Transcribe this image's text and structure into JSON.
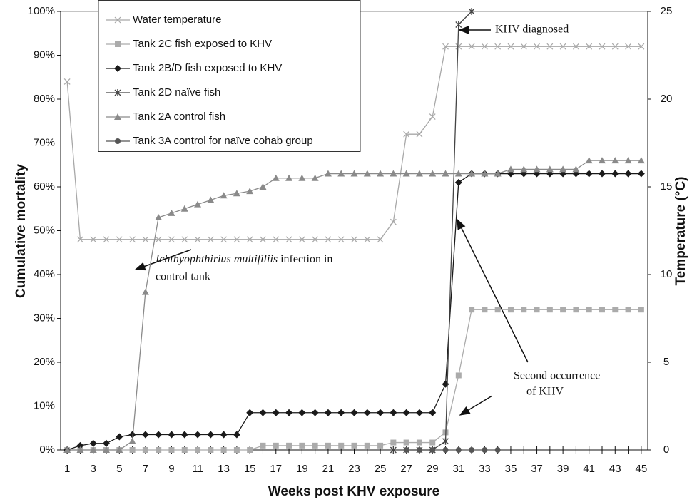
{
  "chart_data": {
    "type": "line",
    "x_label": "Weeks post KHV exposure",
    "y_label": "Cumulative mortality",
    "y2_label": "Temperature  (°C)",
    "x": [
      1,
      2,
      3,
      4,
      5,
      6,
      7,
      8,
      9,
      10,
      11,
      12,
      13,
      14,
      15,
      16,
      17,
      18,
      19,
      20,
      21,
      22,
      23,
      24,
      25,
      26,
      27,
      28,
      29,
      30,
      31,
      32,
      33,
      34,
      35,
      36,
      37,
      38,
      39,
      40,
      41,
      42,
      43,
      44,
      45
    ],
    "xlim": [
      0.5,
      45.5
    ],
    "xticks": [
      1,
      3,
      5,
      7,
      9,
      11,
      13,
      15,
      17,
      19,
      21,
      23,
      25,
      27,
      29,
      31,
      33,
      35,
      37,
      39,
      41,
      43,
      45
    ],
    "ylim": [
      0,
      100
    ],
    "yticks": [
      {
        "value": 0,
        "label": "0%"
      },
      {
        "value": 10,
        "label": "10%"
      },
      {
        "value": 20,
        "label": "20%"
      },
      {
        "value": 30,
        "label": "30%"
      },
      {
        "value": 40,
        "label": "40%"
      },
      {
        "value": 50,
        "label": "50%"
      },
      {
        "value": 60,
        "label": "60%"
      },
      {
        "value": 70,
        "label": "70%"
      },
      {
        "value": 80,
        "label": "80%"
      },
      {
        "value": 90,
        "label": "90%"
      },
      {
        "value": 100,
        "label": "100%"
      }
    ],
    "y2lim": [
      0,
      25
    ],
    "y2ticks": [
      0,
      5,
      10,
      15,
      20,
      25
    ],
    "series": [
      {
        "name": "Water temperature",
        "color": "#a8a8a8",
        "marker": "x",
        "axis": "y2",
        "values": [
          21,
          12,
          12,
          12,
          12,
          12,
          12,
          12,
          12,
          12,
          12,
          12,
          12,
          12,
          12,
          12,
          12,
          12,
          12,
          12,
          12,
          12,
          12,
          12,
          12,
          13,
          18,
          18,
          19,
          23,
          23,
          23,
          23,
          23,
          23,
          23,
          23,
          23,
          23,
          23,
          23,
          23,
          23,
          23,
          23
        ]
      },
      {
        "name": "Tank 2C fish exposed to KHV",
        "color": "#ababab",
        "marker": "square",
        "values": [
          0,
          0,
          0,
          0,
          0,
          0,
          0,
          0,
          0,
          0,
          0,
          0,
          0,
          0,
          0,
          1,
          1,
          1,
          1,
          1,
          1,
          1,
          1,
          1,
          1,
          1.7,
          1.7,
          1.7,
          1.7,
          4,
          17,
          32,
          32,
          32,
          32,
          32,
          32,
          32,
          32,
          32,
          32,
          32,
          32,
          32,
          32
        ]
      },
      {
        "name": "Tank 2B/D fish exposed to KHV",
        "color": "#1a1a1a",
        "marker": "diamond",
        "values": [
          0,
          1,
          1.5,
          1.5,
          3,
          3.5,
          3.5,
          3.5,
          3.5,
          3.5,
          3.5,
          3.5,
          3.5,
          3.5,
          8.5,
          8.5,
          8.5,
          8.5,
          8.5,
          8.5,
          8.5,
          8.5,
          8.5,
          8.5,
          8.5,
          8.5,
          8.5,
          8.5,
          8.5,
          15,
          61,
          63,
          63,
          63,
          63,
          63,
          63,
          63,
          63,
          63,
          63,
          63,
          63,
          63,
          63
        ]
      },
      {
        "name": "Tank 2D naïve fish",
        "color": "#444444",
        "marker": "star",
        "values": [
          null,
          null,
          null,
          null,
          null,
          null,
          null,
          null,
          null,
          null,
          null,
          null,
          null,
          null,
          null,
          null,
          null,
          null,
          null,
          null,
          null,
          null,
          null,
          null,
          null,
          0,
          0,
          0,
          0,
          2,
          97,
          100,
          null,
          null,
          null,
          null,
          null,
          null,
          null,
          null,
          null,
          null,
          null,
          null,
          null
        ]
      },
      {
        "name": "Tank 2A control fish",
        "color": "#8a8a8a",
        "marker": "triangle",
        "values": [
          0,
          0,
          0,
          0,
          0,
          2,
          36,
          53,
          54,
          55,
          56,
          57,
          58,
          58.5,
          59,
          60,
          62,
          62,
          62,
          62,
          63,
          63,
          63,
          63,
          63,
          63,
          63,
          63,
          63,
          63,
          63,
          63,
          63,
          63,
          64,
          64,
          64,
          64,
          64,
          64,
          66,
          66,
          66,
          66,
          66
        ]
      },
      {
        "name": "Tank 3A control for naïve cohab group",
        "color": "#555555",
        "marker": "circle",
        "values": [
          null,
          null,
          null,
          null,
          null,
          null,
          null,
          null,
          null,
          null,
          null,
          null,
          null,
          null,
          null,
          null,
          null,
          null,
          null,
          null,
          null,
          null,
          null,
          null,
          null,
          null,
          0,
          0,
          0,
          0,
          0,
          0,
          0,
          0,
          null,
          null,
          null,
          null,
          null,
          null,
          null,
          null,
          null,
          null,
          null
        ]
      }
    ],
    "annotations": [
      "KHV diagnosed",
      "Ichthyophthirius multifiliis",
      " infection in",
      "control tank",
      "Second occurrence",
      "of KHV"
    ]
  }
}
